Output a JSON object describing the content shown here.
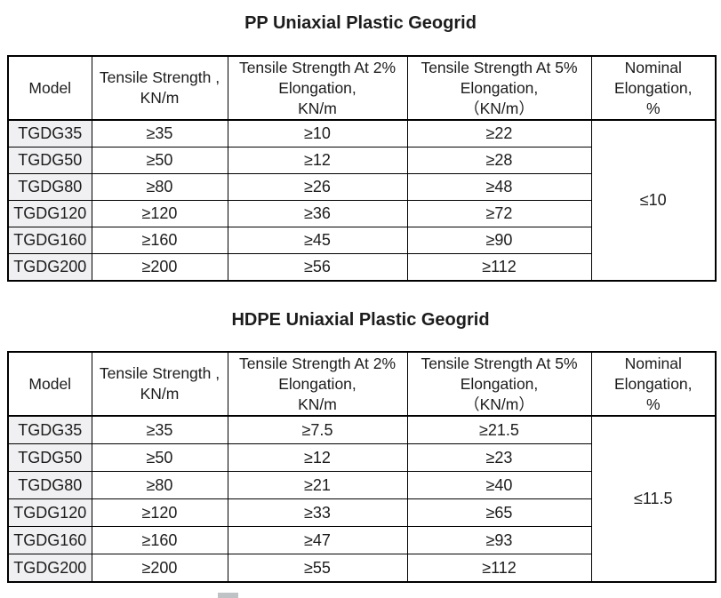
{
  "titles": {
    "pp": "PP Uniaxial Plastic Geogrid",
    "hdpe": "HDPE Uniaxial Plastic Geogrid"
  },
  "columns": [
    "Model",
    "Tensile Strength ,\nKN/m",
    "Tensile Strength At 2%\nElongation,\nKN/m",
    "Tensile Strength At 5%\nElongation,\n（KN/m）",
    "Nominal\nElongation,\n%"
  ],
  "pp": {
    "rows": [
      [
        "TGDG35",
        "≥35",
        "≥10",
        "≥22"
      ],
      [
        "TGDG50",
        "≥50",
        "≥12",
        "≥28"
      ],
      [
        "TGDG80",
        "≥80",
        "≥26",
        "≥48"
      ],
      [
        "TGDG120",
        "≥120",
        "≥36",
        "≥72"
      ],
      [
        "TGDG160",
        "≥160",
        "≥45",
        "≥90"
      ],
      [
        "TGDG200",
        "≥200",
        "≥56",
        "≥112"
      ]
    ],
    "nominal_elongation": "≤10"
  },
  "hdpe": {
    "rows": [
      [
        "TGDG35",
        "≥35",
        "≥7.5",
        "≥21.5"
      ],
      [
        "TGDG50",
        "≥50",
        "≥12",
        "≥23"
      ],
      [
        "TGDG80",
        "≥80",
        "≥21",
        "≥40"
      ],
      [
        "TGDG120",
        "≥120",
        "≥33",
        "≥65"
      ],
      [
        "TGDG160",
        "≥160",
        "≥47",
        "≥93"
      ],
      [
        "TGDG200",
        "≥200",
        "≥55",
        "≥112"
      ]
    ],
    "nominal_elongation": "≤11.5"
  },
  "colors": {
    "border": "#000000",
    "model_cell_bg": "#f0f0f2",
    "header_bg": "#ffffff",
    "page_bg": "#ffffff",
    "text": "#1c1c1c",
    "scrollbar_fragment": "#c0c3c5"
  }
}
